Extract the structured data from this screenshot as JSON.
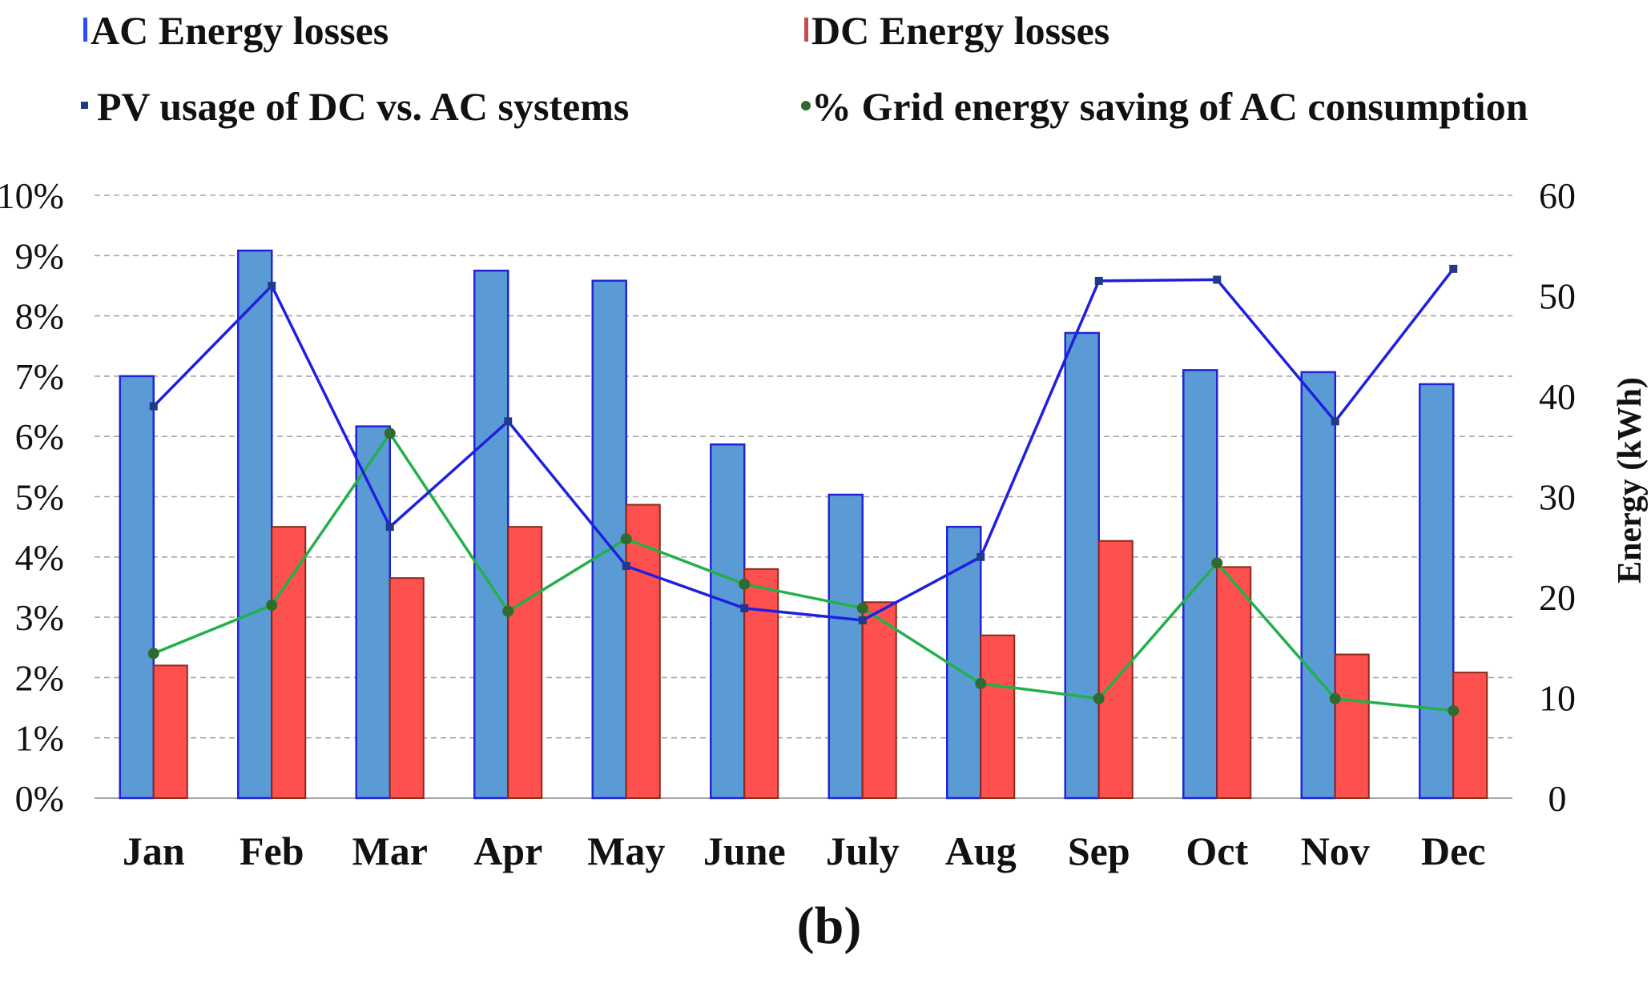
{
  "chart_data": {
    "type": "bar",
    "categories": [
      "Jan",
      "Feb",
      "Mar",
      "Apr",
      "May",
      "June",
      "July",
      "Aug",
      "Sep",
      "Oct",
      "Nov",
      "Dec"
    ],
    "series": [
      {
        "name": "AC Energy losses",
        "kind": "bar",
        "axis": "right",
        "color": "#5b9bd5",
        "values": [
          42,
          54.5,
          37,
          52.5,
          51.5,
          35.2,
          30.2,
          27,
          46.3,
          42.6,
          42.4,
          41.2
        ]
      },
      {
        "name": "DC Energy losses",
        "kind": "bar",
        "axis": "right",
        "color": "#ff5050",
        "values": [
          13.2,
          27,
          21.9,
          27,
          29.2,
          22.8,
          19.5,
          16.2,
          25.6,
          23,
          14.3,
          12.5
        ]
      },
      {
        "name": "PV usage of DC vs. AC systems",
        "kind": "line",
        "axis": "left",
        "color": "#1f1fe0",
        "values": [
          6.5,
          8.5,
          4.5,
          6.25,
          3.85,
          3.15,
          2.95,
          4.0,
          8.58,
          8.6,
          6.25,
          8.78
        ]
      },
      {
        "name": "% Grid energy saving of AC consumption",
        "kind": "line",
        "axis": "left",
        "color": "#22b04a",
        "values": [
          2.4,
          3.2,
          6.05,
          3.1,
          4.3,
          3.55,
          3.15,
          1.9,
          1.65,
          3.9,
          1.65,
          1.45
        ]
      }
    ],
    "left_axis": {
      "min": 0,
      "max": 10,
      "step": 1,
      "tick_labels": [
        "0%",
        "1%",
        "2%",
        "3%",
        "4%",
        "5%",
        "6%",
        "7%",
        "8%",
        "9%",
        "10%"
      ]
    },
    "right_axis": {
      "min": 0,
      "max": 60,
      "step": 10,
      "tick_labels": [
        "0",
        "10",
        "20",
        "30",
        "40",
        "50",
        "60"
      ]
    },
    "ylabel_right": "Energy (kWh)",
    "grid": true,
    "legend_position": "top"
  },
  "caption": "(b)"
}
